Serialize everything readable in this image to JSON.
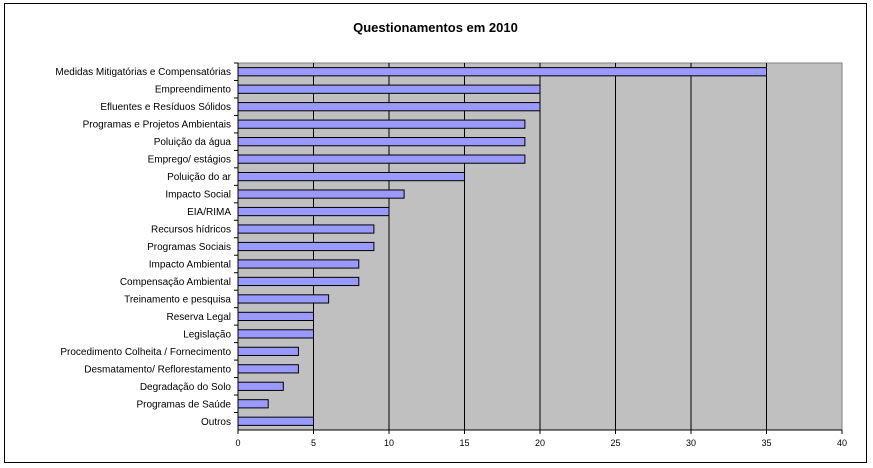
{
  "chart_data": {
    "type": "bar",
    "orientation": "horizontal",
    "title": "Questionamentos em 2010",
    "xlabel": "",
    "ylabel": "",
    "xlim": [
      0,
      40
    ],
    "xticks": [
      0,
      5,
      10,
      15,
      20,
      25,
      30,
      35,
      40
    ],
    "grid": true,
    "legend": "none",
    "colors": {
      "plot_background": "#c0c0c0",
      "bar_fill": "#9999ff",
      "bar_stroke": "#000000",
      "gridline": "#000000"
    },
    "categories": [
      "Medidas Mitigatórias e Compensatórias",
      "Empreendimento",
      "Efluentes e Resíduos Sólidos",
      "Programas e Projetos Ambientais",
      "Poluição da água",
      "Emprego/ estágios",
      "Poluição do ar",
      "Impacto Social",
      "EIA/RIMA",
      "Recursos hídricos",
      "Programas Sociais",
      "Impacto Ambiental",
      "Compensação Ambiental",
      "Treinamento  e pesquisa",
      "Reserva Legal",
      "Legislação",
      "Procedimento Colheita / Fornecimento",
      "Desmatamento/ Reflorestamento",
      "Degradação do Solo",
      "Programas de Saúde",
      "Outros"
    ],
    "values": [
      35,
      20,
      20,
      19,
      19,
      19,
      15,
      11,
      10,
      9,
      9,
      8,
      8,
      6,
      5,
      5,
      4,
      4,
      3,
      2,
      5
    ]
  }
}
